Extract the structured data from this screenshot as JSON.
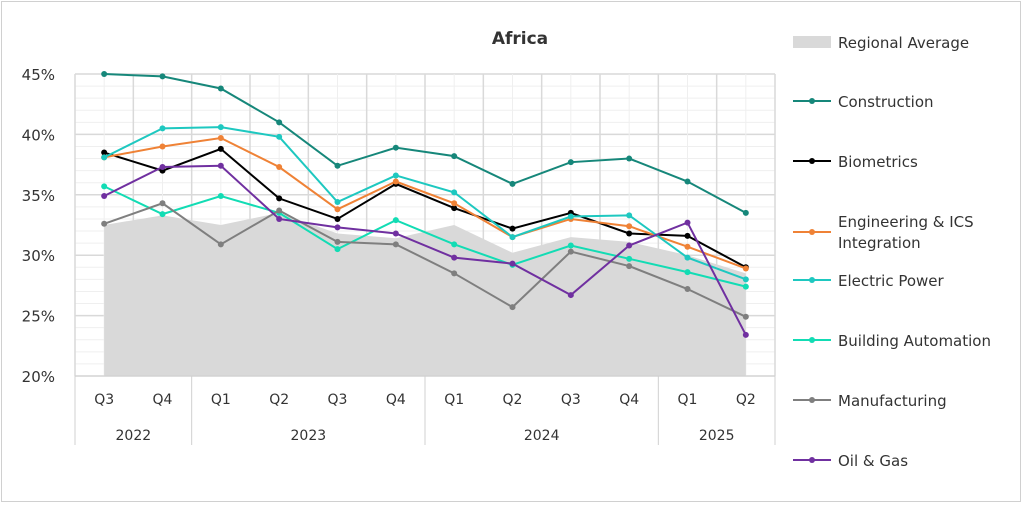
{
  "chart_data": {
    "type": "line",
    "title": "Africa",
    "xlabel": "",
    "ylabel": "",
    "ylim": [
      20,
      45
    ],
    "yticks": [
      "20%",
      "25%",
      "30%",
      "35%",
      "40%",
      "45%"
    ],
    "categories": [
      "Q3",
      "Q4",
      "Q1",
      "Q2",
      "Q3",
      "Q4",
      "Q1",
      "Q2",
      "Q3",
      "Q4",
      "Q1",
      "Q2"
    ],
    "year_groups": [
      {
        "label": "2022",
        "count": 2
      },
      {
        "label": "2023",
        "count": 4
      },
      {
        "label": "2024",
        "count": 4
      },
      {
        "label": "2025",
        "count": 2
      }
    ],
    "legend_position": "right",
    "grid": true,
    "area": {
      "name": "Regional Average",
      "color": "#d9d9d9",
      "values": [
        32.5,
        33.3,
        32.5,
        33.5,
        31.8,
        31.4,
        32.5,
        30.2,
        31.5,
        31.1,
        30.0,
        28.5
      ]
    },
    "series": [
      {
        "name": "Construction",
        "color": "#16877a",
        "values": [
          45.0,
          44.8,
          43.8,
          41.0,
          37.4,
          38.9,
          38.2,
          35.9,
          37.7,
          38.0,
          36.1,
          33.5
        ]
      },
      {
        "name": "Biometrics",
        "color": "#000000",
        "values": [
          38.5,
          37.0,
          38.8,
          34.7,
          33.0,
          35.9,
          33.9,
          32.2,
          33.5,
          31.8,
          31.6,
          29.0
        ]
      },
      {
        "name": "Engineering & ICS Integration",
        "color": "#ef8236",
        "values": [
          38.1,
          39.0,
          39.7,
          37.3,
          33.8,
          36.1,
          34.3,
          31.5,
          33.0,
          32.4,
          30.7,
          28.9
        ]
      },
      {
        "name": "Electric Power",
        "color": "#1ec8c0",
        "values": [
          38.1,
          40.5,
          40.6,
          39.8,
          34.4,
          36.6,
          35.2,
          31.5,
          33.2,
          33.3,
          29.8,
          28.0
        ]
      },
      {
        "name": "Building Automation",
        "color": "#12dcb4",
        "values": [
          35.7,
          33.4,
          34.9,
          33.5,
          30.5,
          32.9,
          30.9,
          29.2,
          30.8,
          29.7,
          28.6,
          27.4
        ]
      },
      {
        "name": "Manufacturing",
        "color": "#7f7f7f",
        "values": [
          32.6,
          34.3,
          30.9,
          33.7,
          31.1,
          30.9,
          28.5,
          25.7,
          30.3,
          29.1,
          27.2,
          24.9
        ]
      },
      {
        "name": "Oil & Gas",
        "color": "#7030a0",
        "values": [
          34.9,
          37.3,
          37.4,
          33.0,
          32.3,
          31.8,
          29.8,
          29.3,
          26.7,
          30.8,
          32.7,
          23.4
        ]
      }
    ]
  }
}
